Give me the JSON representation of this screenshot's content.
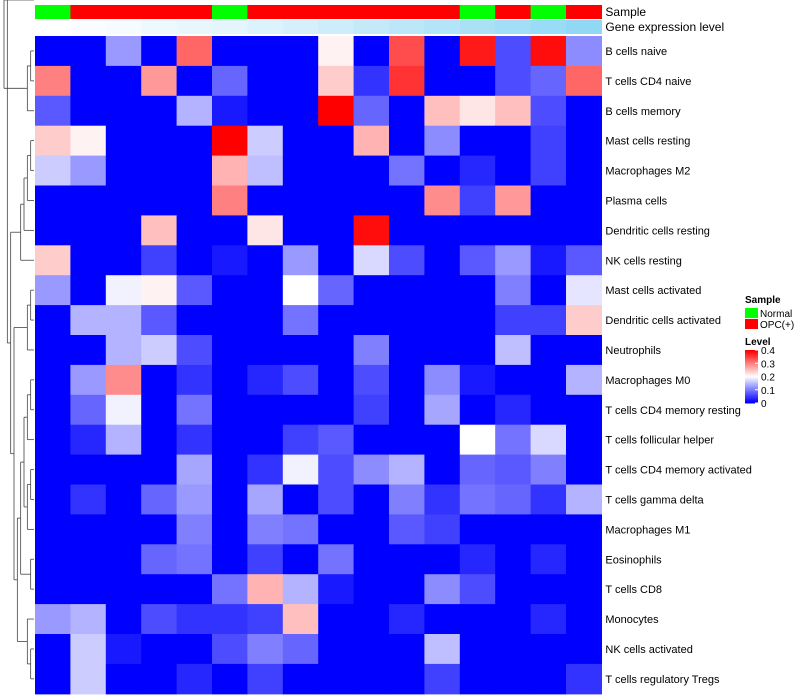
{
  "chart_data": {
    "type": "heatmap",
    "annotations": [
      {
        "name": "Sample",
        "values": [
          "Normal",
          "OPC(+)",
          "OPC(+)",
          "OPC(+)",
          "OPC(+)",
          "Normal",
          "OPC(+)",
          "OPC(+)",
          "OPC(+)",
          "OPC(+)",
          "OPC(+)",
          "OPC(+)",
          "Normal",
          "OPC(+)",
          "Normal",
          "OPC(+)"
        ],
        "colors": {
          "Normal": "#00ff00",
          "OPC(+)": "#ff0000"
        }
      },
      {
        "name": "Gene expression level",
        "values": [
          0.0,
          0.03,
          0.06,
          0.1,
          0.13,
          0.16,
          0.2,
          0.25,
          0.3,
          0.35,
          0.4,
          0.45,
          0.5,
          0.55,
          0.6,
          0.65
        ],
        "color_low": "#ffffff",
        "color_high": "#56c3ef"
      }
    ],
    "rows": [
      "B cells naive",
      "T cells CD4 naive",
      "B cells memory",
      "Mast cells resting",
      "Macrophages M2",
      "Plasma cells",
      "Dendritic cells resting",
      "NK cells resting",
      "Mast cells activated",
      "Dendritic cells activated",
      "Neutrophils",
      "Macrophages M0",
      "T cells CD4 memory resting",
      "T cells follicular helper",
      "T cells CD4 memory activated",
      "T cells gamma delta",
      "Macrophages M1",
      "Eosinophils",
      "T cells CD8",
      "Monocytes",
      "NK cells activated",
      "T cells regulatory  Tregs"
    ],
    "values": [
      [
        0.0,
        0.0,
        0.12,
        0.0,
        0.32,
        0.0,
        0.0,
        0.0,
        0.21,
        0.0,
        0.34,
        0.0,
        0.38,
        0.06,
        0.39,
        0.11
      ],
      [
        0.3,
        0.0,
        0.0,
        0.28,
        0.0,
        0.08,
        0.0,
        0.0,
        0.24,
        0.04,
        0.36,
        0.0,
        0.0,
        0.06,
        0.08,
        0.32
      ],
      [
        0.07,
        0.0,
        0.0,
        0.0,
        0.14,
        0.02,
        0.0,
        0.0,
        0.4,
        0.08,
        0.0,
        0.25,
        0.22,
        0.25,
        0.06,
        0.0
      ],
      [
        0.24,
        0.21,
        0.0,
        0.0,
        0.0,
        0.4,
        0.16,
        0.0,
        0.0,
        0.26,
        0.0,
        0.11,
        0.0,
        0.0,
        0.05,
        0.0
      ],
      [
        0.16,
        0.12,
        0.0,
        0.0,
        0.0,
        0.26,
        0.15,
        0.0,
        0.0,
        0.0,
        0.09,
        0.0,
        0.03,
        0.0,
        0.05,
        0.0
      ],
      [
        0.0,
        0.0,
        0.0,
        0.0,
        0.0,
        0.3,
        0.0,
        0.0,
        0.0,
        0.0,
        0.0,
        0.29,
        0.05,
        0.28,
        0.0,
        0.0
      ],
      [
        0.0,
        0.0,
        0.0,
        0.25,
        0.0,
        0.0,
        0.22,
        0.0,
        0.0,
        0.39,
        0.0,
        0.0,
        0.0,
        0.0,
        0.0,
        0.0
      ],
      [
        0.24,
        0.0,
        0.0,
        0.05,
        0.0,
        0.02,
        0.0,
        0.12,
        0.0,
        0.17,
        0.06,
        0.0,
        0.07,
        0.12,
        0.02,
        0.07
      ],
      [
        0.12,
        0.0,
        0.19,
        0.21,
        0.07,
        0.0,
        0.0,
        0.2,
        0.08,
        0.0,
        0.0,
        0.0,
        0.0,
        0.1,
        0.0,
        0.18
      ],
      [
        0.0,
        0.14,
        0.14,
        0.07,
        0.0,
        0.0,
        0.0,
        0.09,
        0.0,
        0.0,
        0.0,
        0.0,
        0.0,
        0.05,
        0.05,
        0.24
      ],
      [
        0.0,
        0.0,
        0.14,
        0.16,
        0.06,
        0.0,
        0.0,
        0.0,
        0.0,
        0.1,
        0.0,
        0.0,
        0.0,
        0.15,
        0.0,
        0.0
      ],
      [
        0.0,
        0.12,
        0.29,
        0.0,
        0.04,
        0.0,
        0.03,
        0.06,
        0.0,
        0.06,
        0.0,
        0.11,
        0.02,
        0.0,
        0.0,
        0.14
      ],
      [
        0.0,
        0.08,
        0.19,
        0.0,
        0.09,
        0.0,
        0.0,
        0.0,
        0.0,
        0.05,
        0.0,
        0.13,
        0.0,
        0.03,
        0.0,
        0.0
      ],
      [
        0.0,
        0.03,
        0.14,
        0.0,
        0.04,
        0.0,
        0.0,
        0.05,
        0.07,
        0.0,
        0.0,
        0.0,
        0.2,
        0.09,
        0.17,
        0.0
      ],
      [
        0.0,
        0.0,
        0.0,
        0.0,
        0.13,
        0.0,
        0.04,
        0.19,
        0.06,
        0.11,
        0.14,
        0.0,
        0.08,
        0.07,
        0.1,
        0.0
      ],
      [
        0.0,
        0.04,
        0.0,
        0.08,
        0.12,
        0.0,
        0.13,
        0.0,
        0.06,
        0.0,
        0.1,
        0.04,
        0.09,
        0.08,
        0.04,
        0.14
      ],
      [
        0.0,
        0.0,
        0.0,
        0.0,
        0.1,
        0.0,
        0.1,
        0.09,
        0.0,
        0.0,
        0.07,
        0.05,
        0.0,
        0.0,
        0.0,
        0.0
      ],
      [
        0.0,
        0.0,
        0.0,
        0.08,
        0.09,
        0.0,
        0.05,
        0.0,
        0.09,
        0.0,
        0.0,
        0.0,
        0.03,
        0.0,
        0.03,
        0.0
      ],
      [
        0.0,
        0.0,
        0.0,
        0.0,
        0.0,
        0.09,
        0.26,
        0.14,
        0.02,
        0.0,
        0.0,
        0.11,
        0.06,
        0.0,
        0.0,
        0.0
      ],
      [
        0.12,
        0.14,
        0.0,
        0.06,
        0.04,
        0.04,
        0.05,
        0.25,
        0.0,
        0.0,
        0.03,
        0.0,
        0.0,
        0.0,
        0.03,
        0.0
      ],
      [
        0.0,
        0.16,
        0.02,
        0.0,
        0.0,
        0.06,
        0.1,
        0.08,
        0.0,
        0.0,
        0.0,
        0.15,
        0.0,
        0.0,
        0.0,
        0.0
      ],
      [
        0.0,
        0.16,
        0.0,
        0.0,
        0.03,
        0.0,
        0.05,
        0.0,
        0.0,
        0.0,
        0.0,
        0.05,
        0.0,
        0.0,
        0.0,
        0.04
      ]
    ],
    "color_scale": {
      "min": 0,
      "mid": 0.2,
      "max": 0.4,
      "low": "#0000ff",
      "mid_color": "#ffffff",
      "high": "#ff0000"
    },
    "row_dendrogram": true,
    "legend": {
      "sample_title": "Sample",
      "sample_entries": [
        {
          "label": "Normal",
          "color": "#00ff00"
        },
        {
          "label": "OPC(+)",
          "color": "#ff0000"
        }
      ],
      "level_title": "Level",
      "level_ticks": [
        "0.4",
        "0.3",
        "0.2",
        "0.1",
        "0"
      ],
      "level_tick_values": [
        0.4,
        0.3,
        0.2,
        0.1,
        0
      ]
    }
  }
}
